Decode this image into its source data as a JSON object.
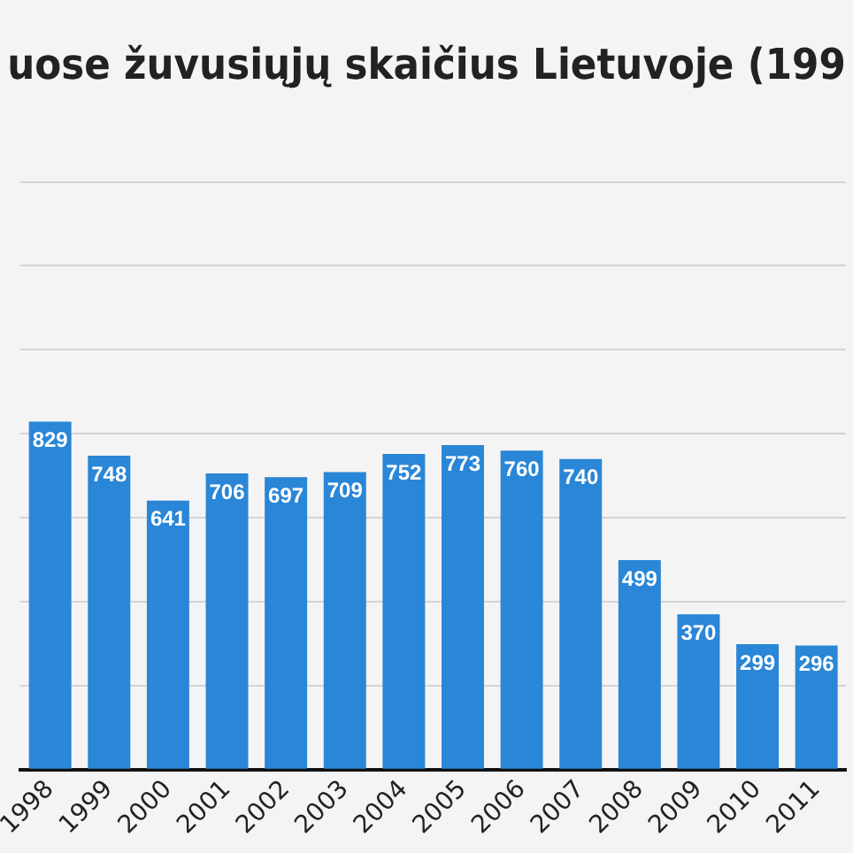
{
  "chart_data": {
    "type": "bar",
    "title": "uose žuvusiųjų skaičius Lietuvoje (199",
    "categories": [
      "1998",
      "1999",
      "2000",
      "2001",
      "2002",
      "2003",
      "2004",
      "2005",
      "2006",
      "2007",
      "2008",
      "2009",
      "2010",
      "2011"
    ],
    "values": [
      829,
      748,
      641,
      706,
      697,
      709,
      752,
      773,
      760,
      740,
      499,
      370,
      299,
      296
    ],
    "color": "#2a86d6",
    "data_labels": true,
    "ylim": [
      0,
      1400
    ],
    "yticks": [
      {
        "value": 0,
        "label": null
      },
      {
        "value": 200,
        "label": null
      },
      {
        "value": 400,
        "label": null
      },
      {
        "value": 600,
        "label": null
      },
      {
        "value": 800,
        "label": null
      },
      {
        "value": 1000,
        "label": null
      },
      {
        "value": 1200,
        "label": null
      },
      {
        "value": 1400,
        "label": null
      }
    ],
    "grid": "y",
    "tick_labels": "x",
    "legend": false
  }
}
